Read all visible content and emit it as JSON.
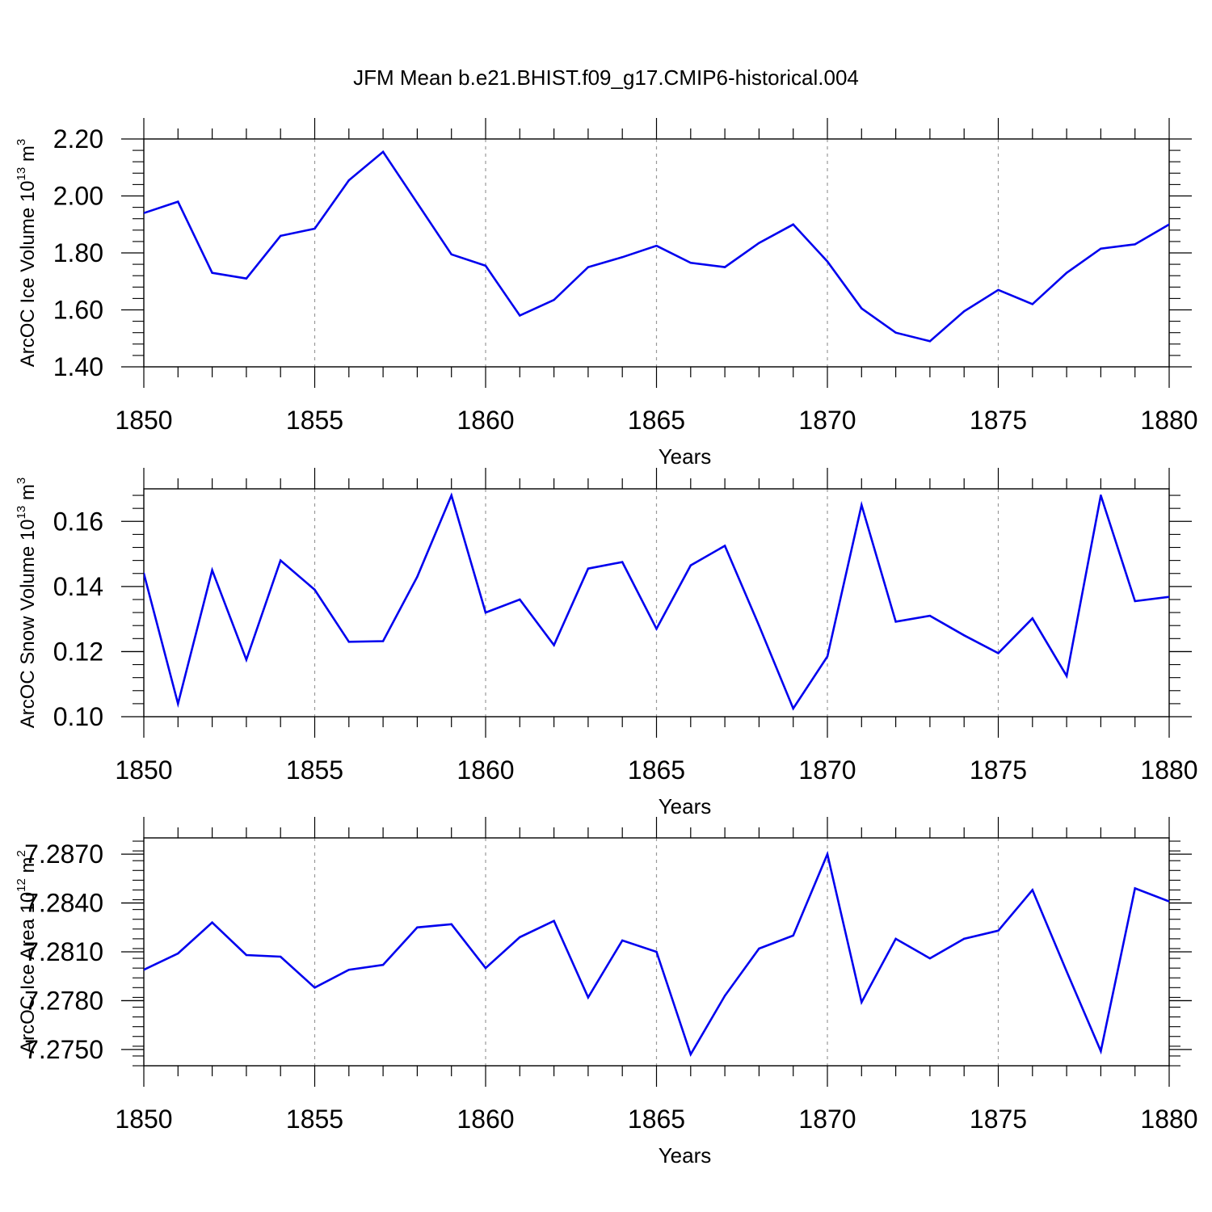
{
  "chart_data": {
    "type": "line",
    "title": "JFM Mean b.e21.BHIST.f09_g17.CMIP6-historical.004",
    "line_color": "#0000ee",
    "panels": [
      {
        "ylabel_main": "ArcOC Ice Volume 10",
        "ylabel_exp": "13",
        "ylabel_unit": "m",
        "ylabel_unit_exp": "3",
        "xlabel": "Years",
        "xlim": [
          1850,
          1880
        ],
        "ylim": [
          1.4,
          2.2
        ],
        "yticks": [
          1.4,
          1.6,
          1.8,
          2.0,
          2.2
        ],
        "ytick_labels": [
          "1.40",
          "1.60",
          "1.80",
          "2.00",
          "2.20"
        ],
        "xticks": [
          1850,
          1855,
          1860,
          1865,
          1870,
          1875,
          1880
        ],
        "xtick_labels": [
          "1850",
          "1855",
          "1860",
          "1865",
          "1870",
          "1875",
          "1880"
        ],
        "x": [
          1850,
          1851,
          1852,
          1853,
          1854,
          1855,
          1856,
          1857,
          1858,
          1859,
          1860,
          1861,
          1862,
          1863,
          1864,
          1865,
          1866,
          1867,
          1868,
          1869,
          1870,
          1871,
          1872,
          1873,
          1874,
          1875,
          1876,
          1877,
          1878,
          1879,
          1880
        ],
        "values": [
          1.94,
          1.98,
          1.73,
          1.71,
          1.86,
          1.885,
          2.055,
          2.155,
          1.975,
          1.795,
          1.755,
          1.58,
          1.635,
          1.75,
          1.785,
          1.825,
          1.765,
          1.75,
          1.835,
          1.9,
          1.77,
          1.605,
          1.52,
          1.49,
          1.595,
          1.67,
          1.62,
          1.73,
          1.815,
          1.83,
          1.9
        ]
      },
      {
        "ylabel_main": "ArcOC Snow Volume 10",
        "ylabel_exp": "13",
        "ylabel_unit": "m",
        "ylabel_unit_exp": "3",
        "xlabel": "Years",
        "xlim": [
          1850,
          1880
        ],
        "ylim": [
          0.1,
          0.17
        ],
        "yticks": [
          0.1,
          0.12,
          0.14,
          0.16
        ],
        "ytick_labels": [
          "0.10",
          "0.12",
          "0.14",
          "0.16"
        ],
        "xticks": [
          1850,
          1855,
          1860,
          1865,
          1870,
          1875,
          1880
        ],
        "xtick_labels": [
          "1850",
          "1855",
          "1860",
          "1865",
          "1870",
          "1875",
          "1880"
        ],
        "x": [
          1850,
          1851,
          1852,
          1853,
          1854,
          1855,
          1856,
          1857,
          1858,
          1859,
          1860,
          1861,
          1862,
          1863,
          1864,
          1865,
          1866,
          1867,
          1868,
          1869,
          1870,
          1871,
          1872,
          1873,
          1874,
          1875,
          1876,
          1877,
          1878,
          1879,
          1880
        ],
        "values": [
          0.144,
          0.104,
          0.145,
          0.1175,
          0.148,
          0.139,
          0.123,
          0.1232,
          0.143,
          0.168,
          0.132,
          0.136,
          0.122,
          0.1455,
          0.1475,
          0.127,
          0.1465,
          0.1525,
          0.128,
          0.1025,
          0.1185,
          0.165,
          0.1292,
          0.131,
          0.125,
          0.1195,
          0.1302,
          0.1125,
          0.168,
          0.1355,
          0.1368
        ]
      },
      {
        "ylabel_main": "ArcOC Ice Area 10",
        "ylabel_exp": "12",
        "ylabel_unit": "m",
        "ylabel_unit_exp": "2",
        "xlabel": "Years",
        "xlim": [
          1850,
          1880
        ],
        "ylim": [
          7.274,
          7.288
        ],
        "yticks": [
          7.275,
          7.278,
          7.281,
          7.284,
          7.287
        ],
        "ytick_labels": [
          "7.2750",
          "7.2780",
          "7.2810",
          "7.2840",
          "7.2870"
        ],
        "xticks": [
          1850,
          1855,
          1860,
          1865,
          1870,
          1875,
          1880
        ],
        "xtick_labels": [
          "1850",
          "1855",
          "1860",
          "1865",
          "1870",
          "1875",
          "1880"
        ],
        "x": [
          1850,
          1851,
          1852,
          1853,
          1854,
          1855,
          1856,
          1857,
          1858,
          1859,
          1860,
          1861,
          1862,
          1863,
          1864,
          1865,
          1866,
          1867,
          1868,
          1869,
          1870,
          1871,
          1872,
          1873,
          1874,
          1875,
          1876,
          1877,
          1878,
          1879,
          1880
        ],
        "values": [
          7.2799,
          7.2809,
          7.2828,
          7.2808,
          7.2807,
          7.2788,
          7.2799,
          7.2802,
          7.2825,
          7.2827,
          7.28,
          7.2819,
          7.2829,
          7.2782,
          7.2817,
          7.281,
          7.2747,
          7.2783,
          7.2812,
          7.282,
          7.287,
          7.2779,
          7.2818,
          7.2806,
          7.2818,
          7.2823,
          7.2848,
          7.2798,
          7.2749,
          7.2849,
          7.2841
        ]
      }
    ]
  }
}
